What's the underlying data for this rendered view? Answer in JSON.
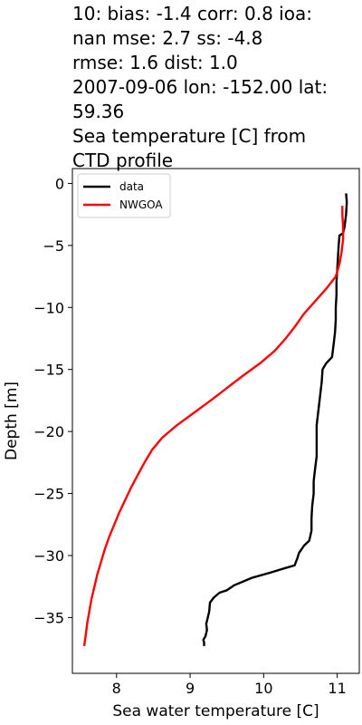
{
  "chart_data": {
    "type": "line",
    "title_lines": [
      "10: bias: -1.4  corr: 0.8  ioa:",
      "nan  mse: 2.7  ss: -4.8",
      "rmse: 1.6  dist: 1.0",
      "2007-09-06 lon: -152.00 lat:",
      "59.36",
      "Sea temperature [C] from",
      "CTD profile"
    ],
    "xlabel": "Sea water temperature [C]",
    "ylabel": "Depth [m]",
    "xlim": [
      7.4,
      11.3
    ],
    "ylim": [
      -39.5,
      1.2
    ],
    "xticks": [
      8,
      9,
      10,
      11
    ],
    "yticks": [
      0,
      -5,
      -10,
      -15,
      -20,
      -25,
      -30,
      -35
    ],
    "grid": false,
    "legend_position": "top-left",
    "series": [
      {
        "name": "data",
        "color": "#000000",
        "points": [
          [
            11.12,
            -0.8
          ],
          [
            11.13,
            -1.5
          ],
          [
            11.12,
            -2.5
          ],
          [
            11.1,
            -3.5
          ],
          [
            11.08,
            -4.0
          ],
          [
            11.03,
            -4.2
          ],
          [
            11.02,
            -5.0
          ],
          [
            11.01,
            -6.0
          ],
          [
            11.0,
            -7.0
          ],
          [
            10.99,
            -8.0
          ],
          [
            10.99,
            -9.0
          ],
          [
            10.98,
            -10.0
          ],
          [
            10.98,
            -11.0
          ],
          [
            10.97,
            -12.0
          ],
          [
            10.95,
            -13.0
          ],
          [
            10.93,
            -14.0
          ],
          [
            10.85,
            -14.5
          ],
          [
            10.8,
            -15.0
          ],
          [
            10.79,
            -16.0
          ],
          [
            10.77,
            -17.0
          ],
          [
            10.75,
            -18.0
          ],
          [
            10.73,
            -19.0
          ],
          [
            10.72,
            -19.5
          ],
          [
            10.72,
            -20.0
          ],
          [
            10.72,
            -21.0
          ],
          [
            10.72,
            -22.0
          ],
          [
            10.7,
            -23.0
          ],
          [
            10.68,
            -24.0
          ],
          [
            10.68,
            -25.0
          ],
          [
            10.66,
            -26.0
          ],
          [
            10.65,
            -27.0
          ],
          [
            10.65,
            -28.0
          ],
          [
            10.62,
            -28.8
          ],
          [
            10.55,
            -29.2
          ],
          [
            10.48,
            -29.8
          ],
          [
            10.46,
            -30.2
          ],
          [
            10.42,
            -30.8
          ],
          [
            10.3,
            -31.0
          ],
          [
            10.08,
            -31.4
          ],
          [
            9.84,
            -31.8
          ],
          [
            9.6,
            -32.4
          ],
          [
            9.5,
            -32.8
          ],
          [
            9.4,
            -33.0
          ],
          [
            9.32,
            -33.4
          ],
          [
            9.27,
            -33.8
          ],
          [
            9.26,
            -34.5
          ],
          [
            9.24,
            -35.0
          ],
          [
            9.22,
            -35.5
          ],
          [
            9.23,
            -36.0
          ],
          [
            9.21,
            -36.5
          ],
          [
            9.18,
            -36.8
          ],
          [
            9.19,
            -37.0
          ],
          [
            9.19,
            -37.3
          ]
        ]
      },
      {
        "name": "NWGOA",
        "color": "#ff0000",
        "points": [
          [
            11.07,
            -1.8
          ],
          [
            11.07,
            -2.5
          ],
          [
            11.08,
            -3.5
          ],
          [
            11.08,
            -4.5
          ],
          [
            11.06,
            -5.5
          ],
          [
            11.03,
            -6.5
          ],
          [
            10.98,
            -7.5
          ],
          [
            10.85,
            -8.5
          ],
          [
            10.7,
            -9.5
          ],
          [
            10.55,
            -10.5
          ],
          [
            10.43,
            -11.5
          ],
          [
            10.3,
            -12.5
          ],
          [
            10.15,
            -13.5
          ],
          [
            9.95,
            -14.5
          ],
          [
            9.72,
            -15.5
          ],
          [
            9.5,
            -16.5
          ],
          [
            9.28,
            -17.5
          ],
          [
            9.05,
            -18.5
          ],
          [
            8.82,
            -19.5
          ],
          [
            8.62,
            -20.5
          ],
          [
            8.48,
            -21.5
          ],
          [
            8.38,
            -22.5
          ],
          [
            8.29,
            -23.5
          ],
          [
            8.2,
            -24.5
          ],
          [
            8.12,
            -25.5
          ],
          [
            8.04,
            -26.5
          ],
          [
            7.97,
            -27.5
          ],
          [
            7.9,
            -28.5
          ],
          [
            7.84,
            -29.5
          ],
          [
            7.79,
            -30.5
          ],
          [
            7.74,
            -31.5
          ],
          [
            7.7,
            -32.5
          ],
          [
            7.66,
            -33.5
          ],
          [
            7.63,
            -34.5
          ],
          [
            7.6,
            -35.5
          ],
          [
            7.58,
            -36.5
          ],
          [
            7.56,
            -37.3
          ]
        ]
      }
    ]
  }
}
